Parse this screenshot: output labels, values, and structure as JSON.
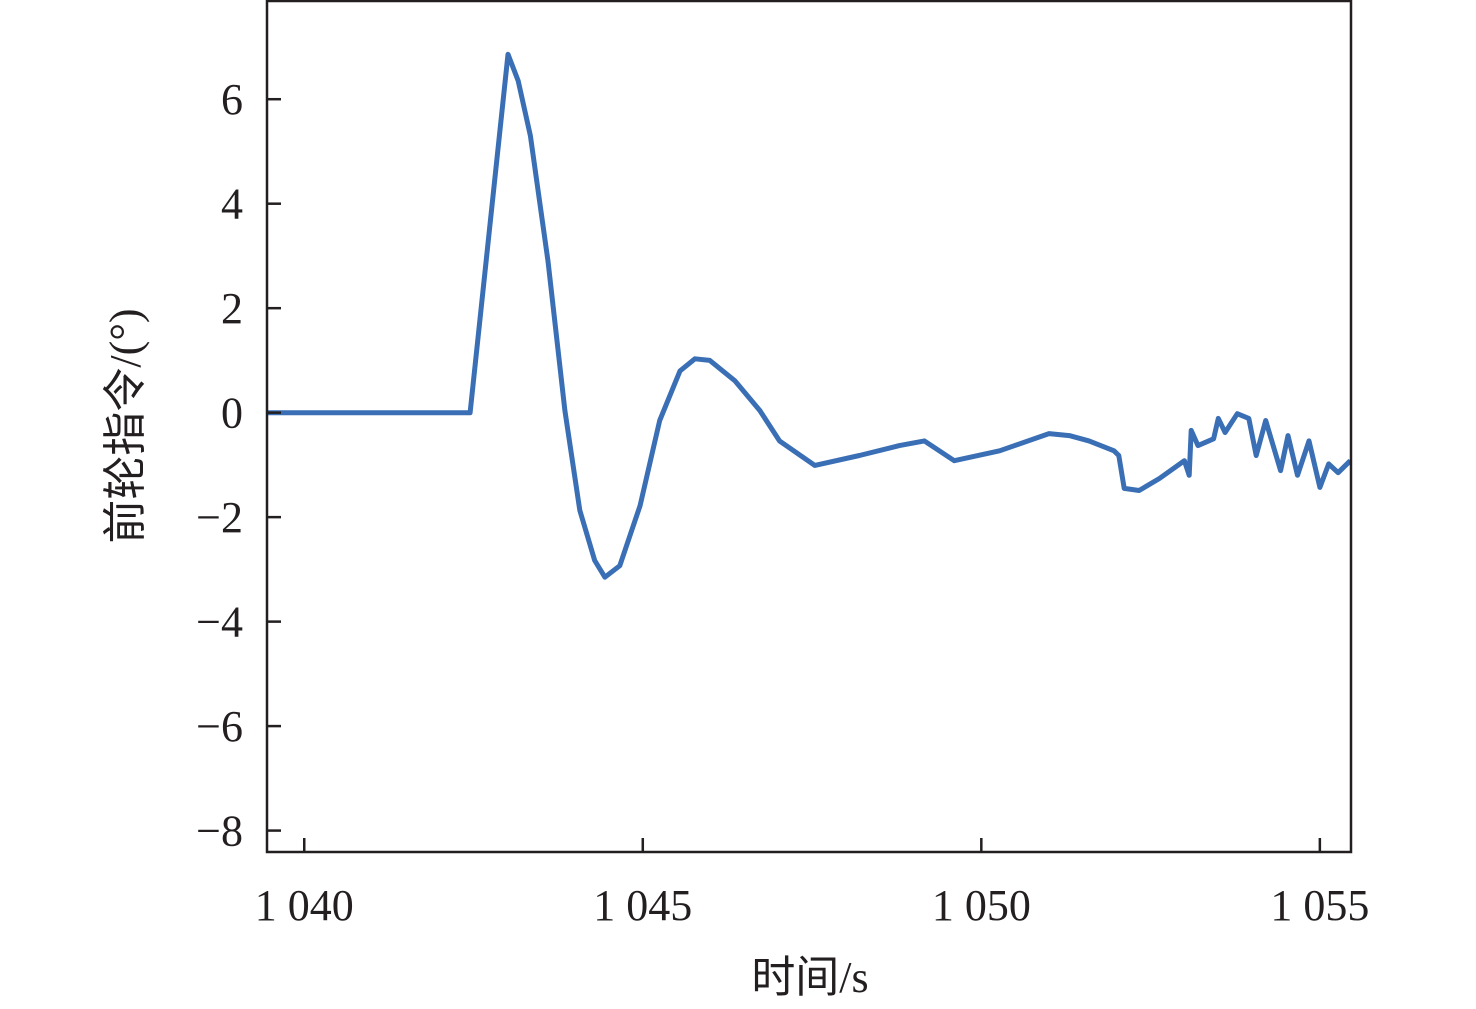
{
  "chart_data": {
    "type": "line",
    "title": "",
    "xlabel": "时间/s",
    "ylabel": "前轮指令/(°)",
    "xlim": [
      1039.45,
      1055.46
    ],
    "ylim": [
      -8.41,
      7.88
    ],
    "xticks": [
      1040,
      1045,
      1050,
      1055
    ],
    "xtick_labels": [
      "1 040",
      "1 045",
      "1 050",
      "1 055"
    ],
    "yticks": [
      6,
      4,
      2,
      0,
      -2,
      -4,
      -6,
      -8
    ],
    "ytick_labels": [
      "6",
      "4",
      "2",
      "0",
      "−2",
      "−4",
      "−6",
      "−8"
    ],
    "grid": false,
    "line_color": "#3a6fb5",
    "series": [
      {
        "x": [
          1039.45,
          1042.45,
          1043.01,
          1043.16,
          1043.34,
          1043.6,
          1043.85,
          1044.07,
          1044.29,
          1044.44,
          1044.66,
          1044.96,
          1045.25,
          1045.55,
          1045.77,
          1045.99,
          1046.36,
          1046.73,
          1047.02,
          1047.54,
          1048.2,
          1048.79,
          1049.16,
          1049.6,
          1050.27,
          1051.0,
          1051.3,
          1051.59,
          1051.96,
          1052.03,
          1052.11,
          1052.33,
          1052.63,
          1053.0,
          1053.07,
          1053.1,
          1053.2,
          1053.43,
          1053.5,
          1053.6,
          1053.78,
          1053.95,
          1054.06,
          1054.2,
          1054.42,
          1054.53,
          1054.67,
          1054.84,
          1055.0,
          1055.13,
          1055.27,
          1055.45
        ],
        "y": [
          0,
          0,
          6.86,
          6.35,
          5.3,
          2.9,
          0.04,
          -1.87,
          -2.83,
          -3.15,
          -2.93,
          -1.78,
          -0.15,
          0.8,
          1.03,
          1.0,
          0.61,
          0.04,
          -0.54,
          -1.01,
          -0.82,
          -0.63,
          -0.54,
          -0.92,
          -0.73,
          -0.4,
          -0.44,
          -0.54,
          -0.73,
          -0.82,
          -1.45,
          -1.49,
          -1.26,
          -0.92,
          -1.2,
          -0.34,
          -0.63,
          -0.5,
          -0.11,
          -0.38,
          -0.02,
          -0.11,
          -0.82,
          -0.15,
          -1.11,
          -0.44,
          -1.2,
          -0.54,
          -1.43,
          -0.98,
          -1.15,
          -0.92
        ]
      }
    ]
  }
}
